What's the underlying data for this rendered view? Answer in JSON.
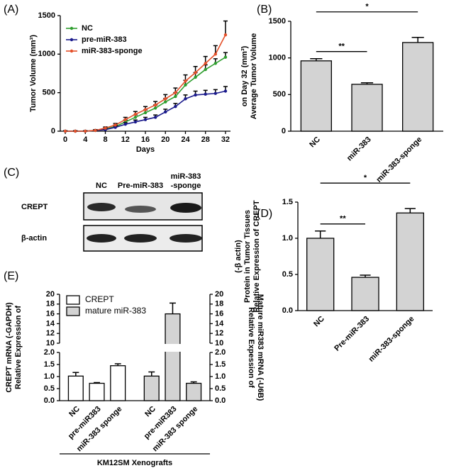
{
  "chart_data": [
    {
      "type": "line",
      "panel_label": "(A)",
      "xlabel": "Days",
      "ylabel": "Tumor Volume (mm³)",
      "x": [
        0,
        2,
        4,
        6,
        8,
        10,
        12,
        14,
        16,
        18,
        20,
        22,
        24,
        26,
        28,
        30,
        32
      ],
      "series": [
        {
          "name": "NC",
          "color": "#2e9e2e",
          "values": [
            0,
            0,
            0,
            10,
            30,
            60,
            120,
            180,
            240,
            300,
            380,
            450,
            600,
            700,
            800,
            880,
            960
          ],
          "errors": [
            5,
            5,
            5,
            8,
            15,
            20,
            25,
            30,
            35,
            40,
            45,
            50,
            60,
            60,
            60,
            60,
            60
          ]
        },
        {
          "name": "pre-miR-383",
          "color": "#1a1a8c",
          "values": [
            0,
            0,
            0,
            10,
            20,
            50,
            90,
            120,
            150,
            180,
            250,
            320,
            420,
            470,
            480,
            490,
            520
          ],
          "errors": [
            5,
            5,
            5,
            8,
            10,
            15,
            20,
            25,
            30,
            30,
            35,
            40,
            50,
            50,
            50,
            50,
            60
          ]
        },
        {
          "name": "miR-383-sponge",
          "color": "#e4502a",
          "values": [
            0,
            0,
            0,
            10,
            40,
            80,
            150,
            220,
            280,
            340,
            420,
            500,
            650,
            760,
            880,
            1000,
            1250
          ],
          "errors": [
            5,
            5,
            5,
            8,
            15,
            20,
            30,
            35,
            40,
            45,
            55,
            60,
            80,
            80,
            90,
            110,
            180
          ]
        }
      ],
      "xlim": [
        -1,
        33
      ],
      "xticks": [
        0,
        4,
        8,
        12,
        16,
        20,
        24,
        28,
        32
      ],
      "ylim": [
        0,
        1500
      ],
      "yticks": [
        0,
        500,
        1000,
        1500
      ],
      "legend": "upper-left"
    },
    {
      "type": "bar",
      "panel_label": "(B)",
      "ylabel": [
        "Average Tumor Volume",
        "on Day 32 (mm³)"
      ],
      "categories": [
        "NC",
        "miR-383",
        "miR-383-sponge"
      ],
      "values": [
        960,
        640,
        1210
      ],
      "errors": [
        30,
        20,
        70
      ],
      "color": "#d3d3d3",
      "ylim": [
        0,
        1500
      ],
      "yticks": [
        0,
        500,
        1000,
        1500
      ],
      "annotations": [
        {
          "text": "**",
          "between": [
            "NC",
            "miR-383"
          ]
        },
        {
          "text": "*",
          "between": [
            "NC",
            "miR-383-sponge"
          ]
        }
      ]
    },
    {
      "type": "bar",
      "panel_label": "(D)",
      "ylabel": [
        "Relative Expression of CREPT",
        "Protein in Tumor Tissues",
        "(-β actin)"
      ],
      "categories": [
        "NC",
        "Pre-miR-383",
        "miR-383-sponge"
      ],
      "values": [
        1.0,
        0.46,
        1.35
      ],
      "errors": [
        0.1,
        0.03,
        0.06
      ],
      "color": "#d3d3d3",
      "ylim": [
        0,
        1.5
      ],
      "yticks": [
        {
          "value": 0,
          "label": "0.0"
        },
        0.5,
        {
          "value": 1,
          "label": "1.0"
        },
        1.5
      ],
      "annotations": [
        {
          "text": "**",
          "between": [
            "NC",
            "Pre-miR-383"
          ]
        },
        {
          "text": "*",
          "between": [
            "NC",
            "miR-383-sponge"
          ]
        }
      ]
    },
    {
      "type": "broken-bar",
      "panel_label": "(E)",
      "xlabel": "KM12SM Xenografts",
      "ylabel": [
        "Relative Expression of",
        "CREPT mRNA (-GAPDH)"
      ],
      "y2label": [
        "Relative Expession of",
        "Mature miR383 mRNA (-U6B)"
      ],
      "categories": [
        "NC",
        "pre-miR383",
        "miR-383 sponge",
        "NC",
        "pre-miR383",
        "miR-383 sponge"
      ],
      "series": [
        {
          "name": "CREPT",
          "color": "#ffffff",
          "values": [
            1.02,
            0.72,
            1.45,
            null,
            null,
            null
          ],
          "errors": [
            0.15,
            0.03,
            0.08,
            null,
            null,
            null
          ]
        },
        {
          "name": "mature miR-383",
          "color": "#d3d3d3",
          "axis": "y2",
          "values": [
            null,
            null,
            null,
            1.02,
            16,
            0.72
          ],
          "errors": [
            null,
            null,
            null,
            0.17,
            2.2,
            0.06
          ]
        }
      ],
      "ylim": [
        0,
        20
      ],
      "ybreak": [
        2,
        10
      ],
      "yticks": [
        {
          "value": 0,
          "label": "0.0"
        },
        0.5,
        {
          "value": 1,
          "label": "1.0"
        },
        1.5,
        {
          "value": 2,
          "label": "2.0"
        },
        10,
        12,
        14,
        16,
        18,
        20
      ],
      "y2lim": [
        0,
        20
      ],
      "y2ticks": [
        {
          "value": 0,
          "label": "0.0"
        },
        0.5,
        {
          "value": 1,
          "label": "1.0"
        },
        1.5,
        {
          "value": 2,
          "label": "2.0"
        },
        10,
        12,
        14,
        16,
        18,
        20
      ],
      "legend": "upper-left"
    }
  ],
  "blot": {
    "panel_label": "(C)",
    "lanes": [
      [
        "NC"
      ],
      [
        "Pre-miR-383"
      ],
      [
        "miR-383",
        "-sponge"
      ]
    ],
    "rows": [
      "CREPT",
      "β-actin"
    ]
  }
}
